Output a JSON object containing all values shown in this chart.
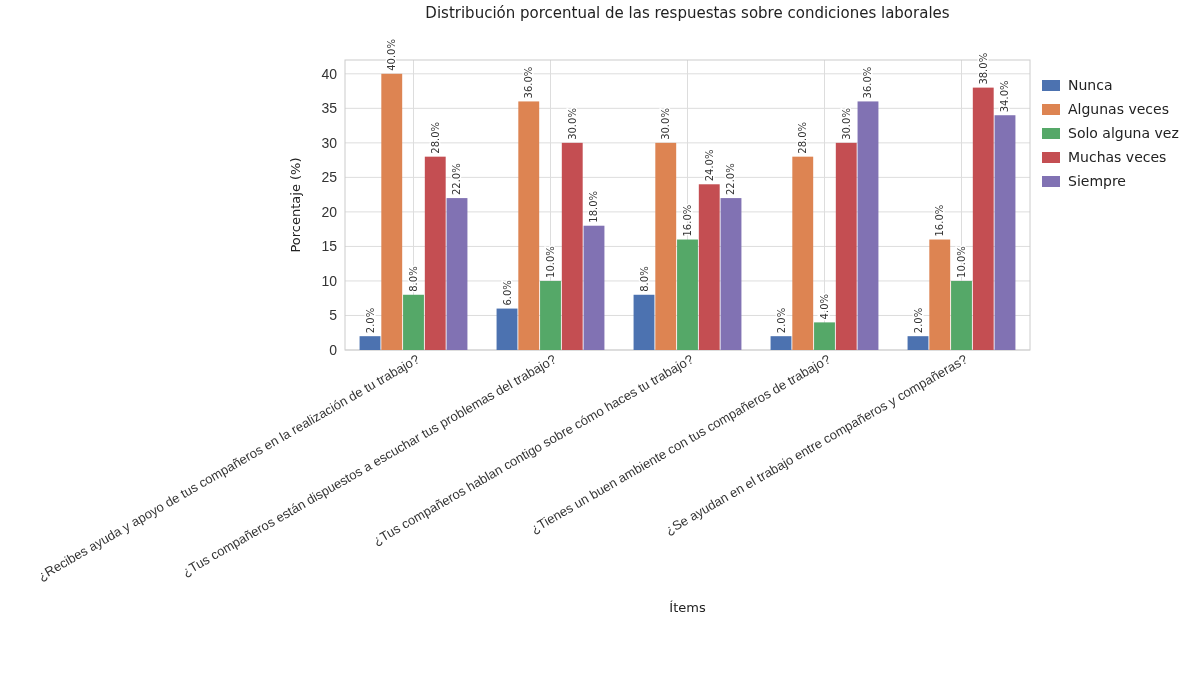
{
  "chart_data": {
    "type": "bar",
    "title": "Distribución porcentual de las respuestas sobre condiciones laborales",
    "xlabel": "Ítems",
    "ylabel": "Porcentaje (%)",
    "categories": [
      "¿Recibes ayuda y apoyo de tus compañeros en la realización de tu trabajo?",
      "¿Tus compañeros están dispuestos a escuchar tus problemas del trabajo?",
      "¿Tus compañeros hablan contigo sobre cómo haces tu trabajo?",
      "¿Tienes un buen ambiente con tus compañeros de trabajo?",
      "¿Se ayudan en el trabajo entre compañeros y compañeras?"
    ],
    "series": [
      {
        "name": "Nunca",
        "color": "#4c72b0",
        "values": [
          2,
          6,
          8,
          2,
          2
        ],
        "value_labels": [
          "2.0%",
          "6.0%",
          "8.0%",
          "2.0%",
          "2.0%"
        ]
      },
      {
        "name": "Algunas veces",
        "color": "#dd8452",
        "values": [
          40,
          36,
          30,
          28,
          16
        ],
        "value_labels": [
          "40.0%",
          "36.0%",
          "30.0%",
          "28.0%",
          "16.0%"
        ]
      },
      {
        "name": "Solo alguna vez",
        "color": "#55a868",
        "values": [
          8,
          10,
          16,
          4,
          10
        ],
        "value_labels": [
          "8.0%",
          "10.0%",
          "16.0%",
          "4.0%",
          "10.0%"
        ]
      },
      {
        "name": "Muchas veces",
        "color": "#c44e52",
        "values": [
          28,
          30,
          24,
          30,
          38
        ],
        "value_labels": [
          "28.0%",
          "30.0%",
          "24.0%",
          "30.0%",
          "38.0%"
        ]
      },
      {
        "name": "Siempre",
        "color": "#8172b3",
        "values": [
          22,
          18,
          22,
          36,
          34
        ],
        "value_labels": [
          "22.0%",
          "18.0%",
          "22.0%",
          "36.0%",
          "34.0%"
        ]
      }
    ],
    "ylim": [
      0,
      42
    ],
    "yticks": [
      0,
      5,
      10,
      15,
      20,
      25,
      30,
      35,
      40
    ],
    "grid": true,
    "legend": "right"
  }
}
